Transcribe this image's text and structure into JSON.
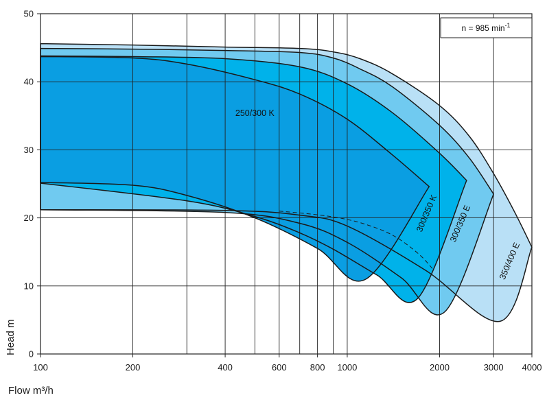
{
  "chart_data": {
    "type": "area",
    "xlabel": "Flow m³/h",
    "ylabel": "Head m",
    "x_scale": "log",
    "xlim": [
      100,
      4000
    ],
    "ylim": [
      0,
      50
    ],
    "x_ticks": [
      100,
      200,
      400,
      600,
      800,
      1000,
      2000,
      3000,
      4000
    ],
    "x_tick_labels": [
      "100",
      "200",
      "400",
      "600",
      "800",
      "1000",
      "2000",
      "3000",
      "4000"
    ],
    "x_gridlines": [
      100,
      200,
      300,
      400,
      500,
      600,
      700,
      800,
      900,
      1000,
      2000,
      3000,
      4000
    ],
    "y_ticks": [
      0,
      10,
      20,
      30,
      40,
      50
    ],
    "y_tick_labels": [
      "0",
      "10",
      "20",
      "30",
      "40",
      "50"
    ],
    "grid": true,
    "annotation": {
      "prefix": "n = 985 min",
      "superscript": "-1"
    },
    "series": [
      {
        "name": "350/400 E",
        "color": "#b9e0f6",
        "polygon": [
          [
            100,
            45.6
          ],
          [
            200,
            45.4
          ],
          [
            400,
            45.1
          ],
          [
            700,
            44.9
          ],
          [
            900,
            44.4
          ],
          [
            1100,
            43.4
          ],
          [
            1400,
            41.2
          ],
          [
            2000,
            36.5
          ],
          [
            2500,
            32.0
          ],
          [
            3000,
            26.5
          ],
          [
            3500,
            21.0
          ],
          [
            4000,
            15.7
          ],
          [
            3150,
            4.8
          ],
          [
            1800,
            12.3
          ],
          [
            1000,
            18.8
          ],
          [
            700,
            20.4
          ],
          [
            400,
            21.1
          ],
          [
            100,
            21.2
          ]
        ]
      },
      {
        "name": "300/350 E",
        "color": "#70caf0",
        "polygon": [
          [
            100,
            44.9
          ],
          [
            200,
            44.8
          ],
          [
            400,
            44.6
          ],
          [
            700,
            44.3
          ],
          [
            900,
            43.5
          ],
          [
            1100,
            41.9
          ],
          [
            1400,
            39.3
          ],
          [
            2000,
            33.6
          ],
          [
            2500,
            28.8
          ],
          [
            3000,
            23.5
          ],
          [
            2080,
            6.2
          ],
          [
            1500,
            11.2
          ],
          [
            1000,
            16.4
          ],
          [
            700,
            19.2
          ],
          [
            400,
            20.8
          ],
          [
            100,
            21.2
          ]
        ]
      },
      {
        "name": "300/350 K",
        "color": "#00b2ea",
        "polygon": [
          [
            100,
            43.8
          ],
          [
            200,
            43.7
          ],
          [
            400,
            43.4
          ],
          [
            700,
            42.2
          ],
          [
            1000,
            39.7
          ],
          [
            1400,
            35.5
          ],
          [
            2000,
            29.5
          ],
          [
            2450,
            25.5
          ],
          [
            1700,
            8.2
          ],
          [
            1250,
            11.6
          ],
          [
            900,
            15.4
          ],
          [
            700,
            17.8
          ],
          [
            500,
            20.2
          ],
          [
            300,
            22.5
          ],
          [
            100,
            25.1
          ]
        ]
      },
      {
        "name": "250/300 K",
        "color": "#0a9ee2",
        "polygon": [
          [
            100,
            43.7
          ],
          [
            200,
            43.5
          ],
          [
            300,
            42.6
          ],
          [
            500,
            40.3
          ],
          [
            700,
            38.2
          ],
          [
            1000,
            34.5
          ],
          [
            1400,
            29.3
          ],
          [
            1850,
            24.6
          ],
          [
            1150,
            11.0
          ],
          [
            800,
            15.5
          ],
          [
            500,
            20.0
          ],
          [
            300,
            23.3
          ],
          [
            200,
            24.8
          ],
          [
            100,
            25.2
          ]
        ]
      }
    ],
    "labels": [
      {
        "text": "250/300 K",
        "at": [
          500,
          35.0
        ],
        "angle": 0
      },
      {
        "text": "300/350 K",
        "at": [
          1850,
          20.5
        ],
        "angle": -67
      },
      {
        "text": "300/350 E",
        "at": [
          2380,
          19.0
        ],
        "angle": -67
      },
      {
        "text": "350/400 E",
        "at": [
          3450,
          13.5
        ],
        "angle": -67
      }
    ],
    "dashed_curve": [
      [
        600,
        21.0
      ],
      [
        850,
        20.3
      ],
      [
        1100,
        19.3
      ],
      [
        1400,
        17.5
      ],
      [
        1700,
        14.8
      ],
      [
        1900,
        12.5
      ]
    ]
  }
}
